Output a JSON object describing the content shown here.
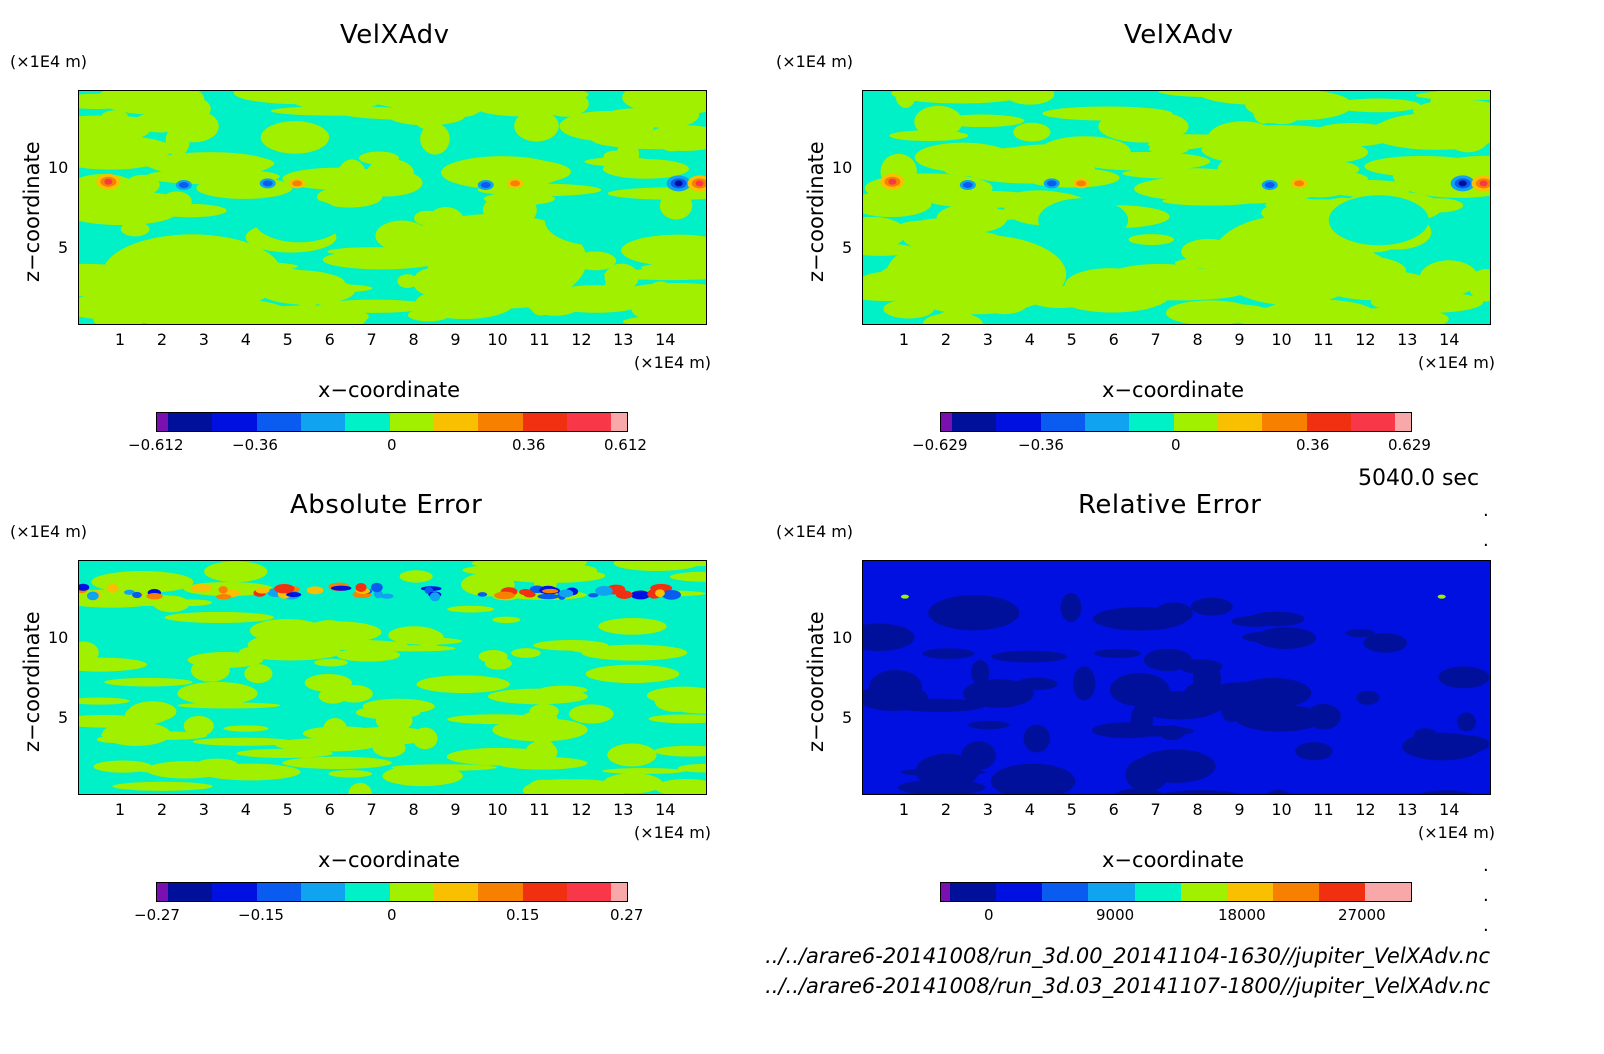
{
  "panels": [
    {
      "title": "VelXAdv",
      "y_unit": "(×1E4 m)",
      "x_unit": "(×1E4 m)",
      "xlabel": "x−coordinate",
      "ylabel": "z−coordinate",
      "x_ticks": [
        "1",
        "2",
        "3",
        "4",
        "5",
        "6",
        "7",
        "8",
        "9",
        "10",
        "11",
        "12",
        "13",
        "14"
      ],
      "y_ticks": [
        "10",
        "5"
      ],
      "colorbar_labels": [
        "−0.612",
        "−0.36",
        "0",
        "0.36",
        "0.612"
      ]
    },
    {
      "title": "VelXAdv",
      "y_unit": "(×1E4 m)",
      "x_unit": "(×1E4 m)",
      "xlabel": "x−coordinate",
      "ylabel": "z−coordinate",
      "x_ticks": [
        "1",
        "2",
        "3",
        "4",
        "5",
        "6",
        "7",
        "8",
        "9",
        "10",
        "11",
        "12",
        "13",
        "14"
      ],
      "y_ticks": [
        "10",
        "5"
      ],
      "colorbar_labels": [
        "−0.629",
        "−0.36",
        "0",
        "0.36",
        "0.629"
      ]
    },
    {
      "title": "Absolute Error",
      "y_unit": "(×1E4 m)",
      "x_unit": "(×1E4 m)",
      "xlabel": "x−coordinate",
      "ylabel": "z−coordinate",
      "x_ticks": [
        "1",
        "2",
        "3",
        "4",
        "5",
        "6",
        "7",
        "8",
        "9",
        "10",
        "11",
        "12",
        "13",
        "14"
      ],
      "y_ticks": [
        "10",
        "5"
      ],
      "colorbar_labels": [
        "−0.27",
        "−0.15",
        "0",
        "0.15",
        "0.27"
      ]
    },
    {
      "title": "Relative Error",
      "y_unit": "(×1E4 m)",
      "x_unit": "(×1E4 m)",
      "xlabel": "x−coordinate",
      "ylabel": "z−coordinate",
      "x_ticks": [
        "1",
        "2",
        "3",
        "4",
        "5",
        "6",
        "7",
        "8",
        "9",
        "10",
        "11",
        "12",
        "13",
        "14"
      ],
      "y_ticks": [
        "10",
        "5"
      ],
      "colorbar_labels": [
        "0",
        "9000",
        "18000",
        "27000"
      ]
    }
  ],
  "time_label": "5040.0 sec",
  "file_paths": [
    "../../arare6-20141008/run_3d.00_20141104-1630//jupiter_VelXAdv.nc",
    "../../arare6-20141008/run_3d.03_20141107-1800//jupiter_VelXAdv.nc"
  ],
  "colors": {
    "palette": [
      "#7a10b0",
      "#00109a",
      "#0010e0",
      "#0a5cf0",
      "#10a4f0",
      "#00f0c8",
      "#a0f000",
      "#f8c000",
      "#f88000",
      "#f03010",
      "#f83848",
      "#f8a8a8"
    ],
    "relative_background": "#0010e0",
    "relative_patch": "#00109a"
  },
  "chart_data": [
    {
      "type": "heatmap",
      "title": "VelXAdv",
      "xlabel": "x−coordinate",
      "ylabel": "z−coordinate",
      "x_unit": "×1E4 m",
      "y_unit": "×1E4 m",
      "xlim": [
        0,
        15
      ],
      "ylim": [
        0,
        14.5
      ],
      "color_range": [
        -0.612,
        0.612
      ],
      "dominant_fields": [
        {
          "x": [
            0.2,
            15
          ],
          "value": 0
        },
        {
          "x": [
            8.5,
            12.5
          ],
          "value": 0.08
        }
      ],
      "features": [
        {
          "x": 0.7,
          "z": 8.9,
          "value": 0.55
        },
        {
          "x": 2.5,
          "z": 8.7,
          "value": -0.28
        },
        {
          "x": 4.5,
          "z": 8.8,
          "value": -0.28
        },
        {
          "x": 5.2,
          "z": 8.8,
          "value": 0.28
        },
        {
          "x": 9.7,
          "z": 8.7,
          "value": -0.28
        },
        {
          "x": 10.4,
          "z": 8.8,
          "value": 0.28
        },
        {
          "x": 14.3,
          "z": 8.8,
          "value": -0.58
        },
        {
          "x": 14.8,
          "z": 8.8,
          "value": 0.5
        }
      ]
    },
    {
      "type": "heatmap",
      "title": "VelXAdv",
      "xlabel": "x−coordinate",
      "ylabel": "z−coordinate",
      "x_unit": "×1E4 m",
      "y_unit": "×1E4 m",
      "xlim": [
        0,
        15
      ],
      "ylim": [
        0,
        14.5
      ],
      "color_range": [
        -0.629,
        0.629
      ],
      "features": [
        {
          "x": 0.7,
          "z": 8.9,
          "value": 0.55
        },
        {
          "x": 2.5,
          "z": 8.7,
          "value": -0.28
        },
        {
          "x": 4.5,
          "z": 8.8,
          "value": -0.28
        },
        {
          "x": 5.2,
          "z": 8.8,
          "value": 0.28
        },
        {
          "x": 9.7,
          "z": 8.7,
          "value": -0.28
        },
        {
          "x": 10.4,
          "z": 8.8,
          "value": 0.28
        },
        {
          "x": 14.3,
          "z": 8.8,
          "value": -0.6
        },
        {
          "x": 14.8,
          "z": 8.8,
          "value": 0.5
        }
      ]
    },
    {
      "type": "heatmap",
      "title": "Absolute Error",
      "xlabel": "x−coordinate",
      "ylabel": "z−coordinate",
      "x_unit": "×1E4 m",
      "y_unit": "×1E4 m",
      "xlim": [
        0,
        15
      ],
      "ylim": [
        0,
        14.5
      ],
      "color_range": [
        -0.27,
        0.27
      ],
      "features": [
        {
          "x": [
            0.2,
            14.8
          ],
          "z": 12.6,
          "value": "alternating ±0.2 band"
        }
      ]
    },
    {
      "type": "heatmap",
      "title": "Relative Error",
      "xlabel": "x−coordinate",
      "ylabel": "z−coordinate",
      "x_unit": "×1E4 m",
      "y_unit": "×1E4 m",
      "xlim": [
        0,
        15
      ],
      "ylim": [
        0,
        14.5
      ],
      "color_range": [
        -3000,
        30000
      ],
      "colorbar_ticks": [
        0,
        9000,
        18000,
        27000
      ],
      "background_value": 3000,
      "features": [
        {
          "x": 1.0,
          "z": 12.3,
          "value": 13000
        },
        {
          "x": 13.8,
          "z": 12.3,
          "value": 13000
        }
      ]
    }
  ]
}
